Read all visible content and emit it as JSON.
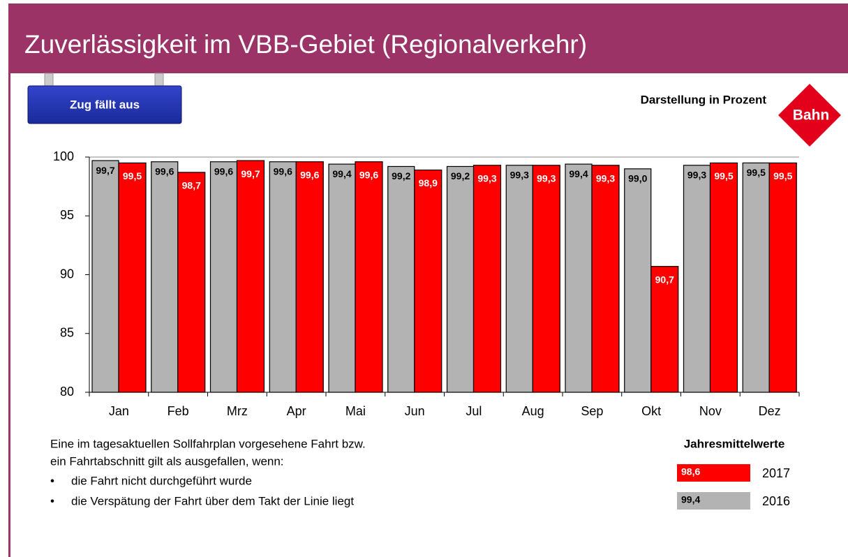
{
  "header": {
    "title": "Zuverlässigkeit im VBB-Gebiet (Regionalverkehr)",
    "button": "Zug fällt aus",
    "subtitle": "Darstellung in Prozent",
    "logo": "Bahn"
  },
  "chart_data": {
    "type": "bar",
    "categories": [
      "Jan",
      "Feb",
      "Mrz",
      "Apr",
      "Mai",
      "Jun",
      "Jul",
      "Aug",
      "Sep",
      "Okt",
      "Nov",
      "Dez"
    ],
    "series": [
      {
        "name": "2016",
        "color": "#b3b3b3",
        "label_color": "#000000",
        "mean": 99.4,
        "mean_label": "99,4",
        "values": [
          99.7,
          99.6,
          99.6,
          99.6,
          99.4,
          99.2,
          99.2,
          99.3,
          99.4,
          99.0,
          99.3,
          99.5
        ],
        "value_labels": [
          "99,7",
          "99,6",
          "99,6",
          "99,6",
          "99,4",
          "99,2",
          "99,2",
          "99,3",
          "99,4",
          "99,0",
          "99,3",
          "99,5"
        ]
      },
      {
        "name": "2017",
        "color": "#ff0000",
        "label_color": "#ffffff",
        "mean": 98.6,
        "mean_label": "98,6",
        "values": [
          99.5,
          98.7,
          99.7,
          99.6,
          99.6,
          98.9,
          99.3,
          99.3,
          99.3,
          90.7,
          99.5,
          99.5
        ],
        "value_labels": [
          "99,5",
          "98,7",
          "99,7",
          "99,6",
          "99,6",
          "98,9",
          "99,3",
          "99,3",
          "99,3",
          "90,7",
          "99,5",
          "99,5"
        ]
      }
    ],
    "ylim": [
      80,
      100
    ],
    "yticks": [
      80,
      85,
      90,
      95,
      100
    ],
    "grid": false,
    "legend_title": "Jahresmittelwerte"
  },
  "note": {
    "intro": [
      "Eine im tagesaktuellen Sollfahrplan vorgesehene Fahrt bzw.",
      "ein Fahrtabschnitt gilt als ausgefallen, wenn:"
    ],
    "bullets": [
      "die Fahrt nicht durchgeführt wurde",
      "die Verspätung der Fahrt über dem Takt der Linie liegt"
    ]
  }
}
